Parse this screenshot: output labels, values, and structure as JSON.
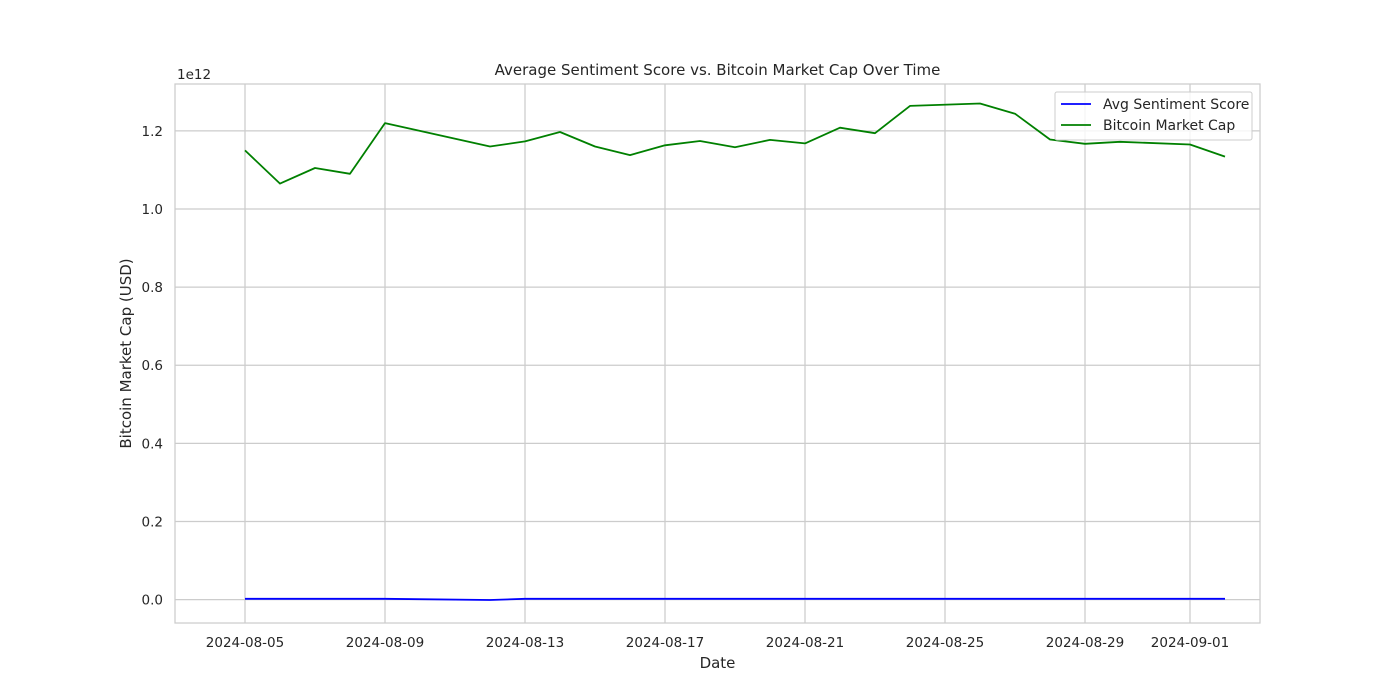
{
  "chart_data": {
    "type": "line",
    "title": "Average Sentiment Score vs. Bitcoin Market Cap Over Time",
    "xlabel": "Date",
    "ylabel": "Bitcoin Market Cap (USD)",
    "y_offset_text": "1e12",
    "y_scale_factor": 1000000000000,
    "xlim": [
      "2024-08-03",
      "2024-09-03"
    ],
    "ylim": [
      -0.06,
      1.32
    ],
    "x_ticks": [
      "2024-08-05",
      "2024-08-09",
      "2024-08-13",
      "2024-08-17",
      "2024-08-21",
      "2024-08-25",
      "2024-08-29",
      "2024-09-01"
    ],
    "y_ticks": [
      0.0,
      0.2,
      0.4,
      0.6,
      0.8,
      1.0,
      1.2
    ],
    "y_tick_labels": [
      "0.0",
      "0.2",
      "0.4",
      "0.6",
      "0.8",
      "1.0",
      "1.2"
    ],
    "grid": true,
    "legend_position": "top-right",
    "series": [
      {
        "name": "Avg Sentiment Score",
        "color": "#0000ff",
        "x": [
          "2024-08-05",
          "2024-08-09",
          "2024-08-12",
          "2024-08-13",
          "2024-08-17",
          "2024-08-21",
          "2024-08-25",
          "2024-08-29",
          "2024-09-02"
        ],
        "values": [
          0.002,
          0.002,
          -0.001,
          0.002,
          0.002,
          0.002,
          0.002,
          0.002,
          0.002
        ]
      },
      {
        "name": "Bitcoin Market Cap",
        "color": "#008000",
        "x": [
          "2024-08-05",
          "2024-08-06",
          "2024-08-07",
          "2024-08-08",
          "2024-08-09",
          "2024-08-12",
          "2024-08-13",
          "2024-08-14",
          "2024-08-15",
          "2024-08-16",
          "2024-08-17",
          "2024-08-18",
          "2024-08-19",
          "2024-08-20",
          "2024-08-21",
          "2024-08-22",
          "2024-08-23",
          "2024-08-24",
          "2024-08-26",
          "2024-08-27",
          "2024-08-28",
          "2024-08-29",
          "2024-08-30",
          "2024-09-01",
          "2024-09-02"
        ],
        "values": [
          1.15,
          1.065,
          1.105,
          1.09,
          1.22,
          1.16,
          1.173,
          1.197,
          1.16,
          1.138,
          1.163,
          1.174,
          1.158,
          1.177,
          1.168,
          1.208,
          1.194,
          1.264,
          1.27,
          1.244,
          1.178,
          1.167,
          1.172,
          1.165,
          1.134
        ]
      }
    ]
  }
}
